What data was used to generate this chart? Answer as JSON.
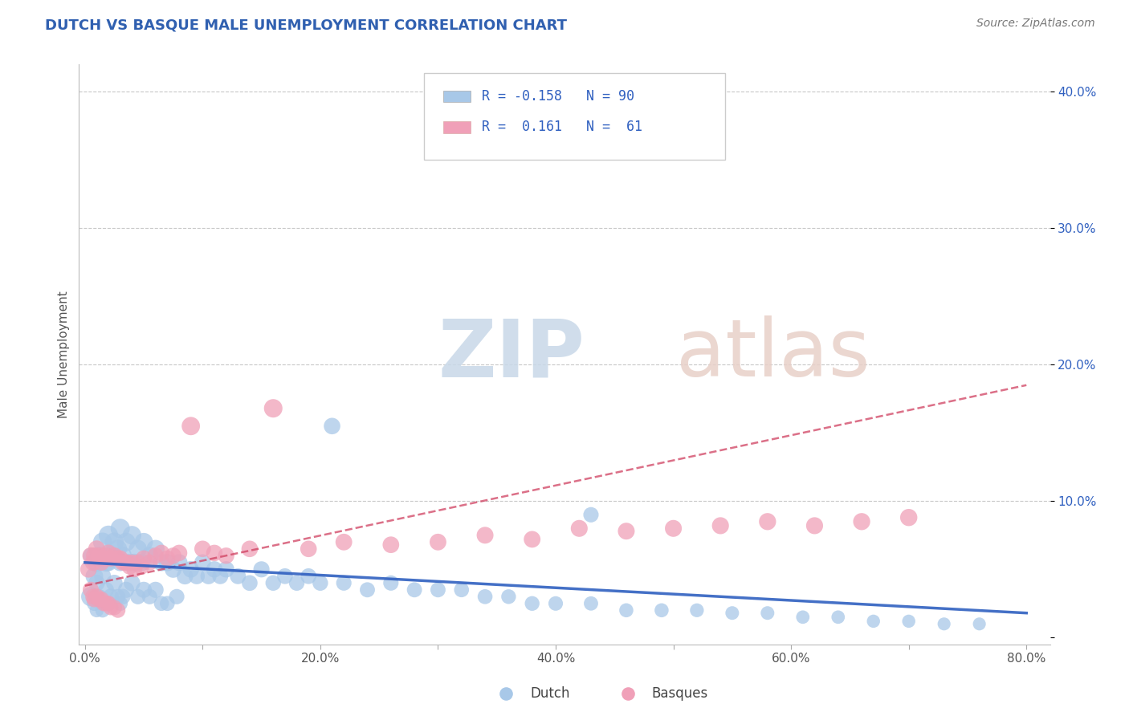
{
  "title": "DUTCH VS BASQUE MALE UNEMPLOYMENT CORRELATION CHART",
  "source_text": "Source: ZipAtlas.com",
  "ylabel": "Male Unemployment",
  "xlim": [
    -0.005,
    0.82
  ],
  "ylim": [
    -0.005,
    0.42
  ],
  "xticks": [
    0.0,
    0.1,
    0.2,
    0.3,
    0.4,
    0.5,
    0.6,
    0.7,
    0.8
  ],
  "xticklabels": [
    "0.0%",
    "",
    "20.0%",
    "",
    "40.0%",
    "",
    "60.0%",
    "",
    "80.0%"
  ],
  "yticks": [
    0.0,
    0.1,
    0.2,
    0.3,
    0.4
  ],
  "yticklabels": [
    "",
    "10.0%",
    "20.0%",
    "30.0%",
    "40.0%"
  ],
  "dutch_color": "#a8c8e8",
  "basque_color": "#f0a0b8",
  "dutch_line_color": "#3060c0",
  "basque_line_color": "#d04060",
  "background_color": "#ffffff",
  "grid_color": "#c8c8c8",
  "title_color": "#3060b0",
  "R_dutch": -0.158,
  "N_dutch": 90,
  "R_basque": 0.161,
  "N_basque": 61,
  "legend_dutch": "Dutch",
  "legend_basque": "Basques",
  "dutch_trend_x": [
    0.0,
    0.8
  ],
  "dutch_trend_y": [
    0.055,
    0.018
  ],
  "basque_trend_x": [
    0.0,
    0.8
  ],
  "basque_trend_y": [
    0.038,
    0.185
  ],
  "dutch_x": [
    0.005,
    0.005,
    0.008,
    0.008,
    0.01,
    0.01,
    0.01,
    0.012,
    0.012,
    0.015,
    0.015,
    0.015,
    0.018,
    0.018,
    0.02,
    0.02,
    0.02,
    0.022,
    0.022,
    0.025,
    0.025,
    0.028,
    0.028,
    0.03,
    0.03,
    0.03,
    0.032,
    0.032,
    0.035,
    0.035,
    0.038,
    0.04,
    0.04,
    0.042,
    0.045,
    0.045,
    0.048,
    0.05,
    0.05,
    0.055,
    0.055,
    0.06,
    0.06,
    0.065,
    0.065,
    0.07,
    0.07,
    0.075,
    0.078,
    0.08,
    0.085,
    0.09,
    0.095,
    0.1,
    0.105,
    0.11,
    0.115,
    0.12,
    0.13,
    0.14,
    0.15,
    0.16,
    0.17,
    0.18,
    0.19,
    0.2,
    0.22,
    0.24,
    0.26,
    0.28,
    0.3,
    0.32,
    0.34,
    0.36,
    0.38,
    0.4,
    0.43,
    0.46,
    0.49,
    0.52,
    0.55,
    0.58,
    0.61,
    0.64,
    0.67,
    0.7,
    0.73,
    0.76,
    0.21,
    0.43
  ],
  "dutch_y": [
    0.03,
    0.06,
    0.045,
    0.025,
    0.055,
    0.04,
    0.02,
    0.06,
    0.03,
    0.07,
    0.045,
    0.02,
    0.055,
    0.035,
    0.075,
    0.055,
    0.025,
    0.06,
    0.03,
    0.07,
    0.04,
    0.065,
    0.03,
    0.08,
    0.055,
    0.025,
    0.06,
    0.03,
    0.07,
    0.035,
    0.055,
    0.075,
    0.04,
    0.055,
    0.065,
    0.03,
    0.055,
    0.07,
    0.035,
    0.06,
    0.03,
    0.065,
    0.035,
    0.055,
    0.025,
    0.055,
    0.025,
    0.05,
    0.03,
    0.055,
    0.045,
    0.05,
    0.045,
    0.055,
    0.045,
    0.05,
    0.045,
    0.05,
    0.045,
    0.04,
    0.05,
    0.04,
    0.045,
    0.04,
    0.045,
    0.04,
    0.04,
    0.035,
    0.04,
    0.035,
    0.035,
    0.035,
    0.03,
    0.03,
    0.025,
    0.025,
    0.025,
    0.02,
    0.02,
    0.02,
    0.018,
    0.018,
    0.015,
    0.015,
    0.012,
    0.012,
    0.01,
    0.01,
    0.155,
    0.09
  ],
  "dutch_size": [
    300,
    200,
    250,
    180,
    280,
    220,
    160,
    260,
    190,
    290,
    230,
    170,
    270,
    200,
    300,
    240,
    180,
    280,
    210,
    290,
    220,
    270,
    190,
    300,
    240,
    180,
    270,
    200,
    280,
    210,
    250,
    280,
    220,
    250,
    260,
    190,
    240,
    270,
    210,
    250,
    190,
    260,
    210,
    240,
    180,
    240,
    180,
    230,
    190,
    230,
    220,
    220,
    210,
    220,
    210,
    215,
    205,
    215,
    205,
    200,
    210,
    195,
    200,
    195,
    200,
    195,
    190,
    185,
    190,
    185,
    185,
    180,
    180,
    175,
    175,
    170,
    165,
    160,
    160,
    155,
    150,
    150,
    145,
    145,
    140,
    140,
    135,
    135,
    220,
    190
  ],
  "basque_x": [
    0.003,
    0.005,
    0.005,
    0.007,
    0.007,
    0.008,
    0.008,
    0.01,
    0.01,
    0.012,
    0.012,
    0.014,
    0.014,
    0.016,
    0.016,
    0.018,
    0.018,
    0.02,
    0.02,
    0.022,
    0.022,
    0.025,
    0.025,
    0.028,
    0.028,
    0.03,
    0.032,
    0.034,
    0.036,
    0.038,
    0.04,
    0.042,
    0.045,
    0.048,
    0.05,
    0.055,
    0.06,
    0.065,
    0.07,
    0.075,
    0.08,
    0.09,
    0.1,
    0.11,
    0.12,
    0.14,
    0.16,
    0.19,
    0.22,
    0.26,
    0.3,
    0.34,
    0.38,
    0.42,
    0.46,
    0.5,
    0.54,
    0.58,
    0.62,
    0.66,
    0.7
  ],
  "basque_y": [
    0.05,
    0.06,
    0.035,
    0.055,
    0.03,
    0.06,
    0.028,
    0.065,
    0.03,
    0.06,
    0.028,
    0.055,
    0.028,
    0.058,
    0.025,
    0.06,
    0.025,
    0.062,
    0.025,
    0.058,
    0.022,
    0.06,
    0.022,
    0.058,
    0.02,
    0.058,
    0.055,
    0.055,
    0.055,
    0.052,
    0.055,
    0.05,
    0.055,
    0.052,
    0.058,
    0.055,
    0.06,
    0.062,
    0.058,
    0.06,
    0.062,
    0.155,
    0.065,
    0.062,
    0.06,
    0.065,
    0.168,
    0.065,
    0.07,
    0.068,
    0.07,
    0.075,
    0.072,
    0.08,
    0.078,
    0.08,
    0.082,
    0.085,
    0.082,
    0.085,
    0.088
  ],
  "basque_size": [
    220,
    230,
    210,
    220,
    200,
    225,
    200,
    230,
    205,
    220,
    200,
    215,
    200,
    218,
    195,
    220,
    195,
    225,
    195,
    220,
    190,
    220,
    190,
    215,
    185,
    215,
    210,
    210,
    210,
    205,
    210,
    205,
    210,
    205,
    212,
    208,
    215,
    218,
    212,
    215,
    218,
    270,
    220,
    218,
    215,
    220,
    275,
    220,
    225,
    222,
    225,
    228,
    225,
    230,
    228,
    230,
    232,
    235,
    232,
    235,
    238
  ]
}
